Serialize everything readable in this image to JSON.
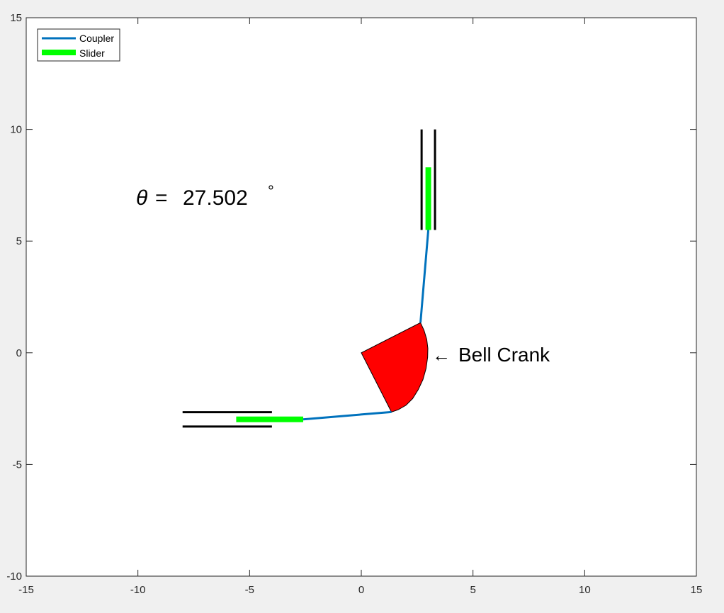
{
  "chart_data": {
    "type": "line",
    "xlim": [
      -15,
      15
    ],
    "ylim": [
      -10,
      15
    ],
    "xticks": [
      -15,
      -10,
      -5,
      0,
      5,
      10,
      15
    ],
    "yticks": [
      -10,
      -5,
      0,
      5,
      10,
      15
    ],
    "xtick_labels": [
      "-15",
      "-10",
      "-5",
      "0",
      "5",
      "10",
      "15"
    ],
    "ytick_labels": [
      "-10",
      "-5",
      "0",
      "5",
      "10",
      "15"
    ],
    "grid": false,
    "legend_position": "top-left",
    "legend": [
      {
        "label": "Coupler",
        "color": "#0072bd",
        "style": "thin-line"
      },
      {
        "label": "Slider",
        "color": "#00ff00",
        "style": "thick-line"
      }
    ],
    "series": [
      {
        "name": "Coupler",
        "color": "#0072bd",
        "segments": [
          {
            "x": [
              -2.6,
              1.35
            ],
            "y": [
              -2.98,
              -2.65
            ]
          },
          {
            "x": [
              2.65,
              3.0
            ],
            "y": [
              1.35,
              5.5
            ]
          }
        ]
      },
      {
        "name": "Slider",
        "color": "#00ff00",
        "segments": [
          {
            "x": [
              -5.6,
              -2.6
            ],
            "y": [
              -2.98,
              -2.98
            ]
          },
          {
            "x": [
              3.0,
              3.0
            ],
            "y": [
              5.5,
              8.3
            ]
          }
        ]
      }
    ],
    "guides": {
      "color": "#000000",
      "segments": [
        {
          "x": [
            -8.0,
            -4.0
          ],
          "y": [
            -2.66,
            -2.66
          ]
        },
        {
          "x": [
            -8.0,
            -4.0
          ],
          "y": [
            -3.3,
            -3.3
          ]
        },
        {
          "x": [
            2.7,
            2.7
          ],
          "y": [
            5.5,
            10.0
          ]
        },
        {
          "x": [
            3.3,
            3.3
          ],
          "y": [
            5.5,
            10.0
          ]
        }
      ]
    },
    "bell_crank": {
      "color": "#ff0000",
      "center": [
        0.0,
        0.0
      ],
      "polygon": [
        [
          0.0,
          0.0
        ],
        [
          2.65,
          1.35
        ],
        [
          2.81,
          1.0
        ],
        [
          2.93,
          0.6
        ],
        [
          2.98,
          0.2
        ],
        [
          2.97,
          -0.2
        ],
        [
          2.9,
          -0.7
        ],
        [
          2.76,
          -1.2
        ],
        [
          2.55,
          -1.65
        ],
        [
          2.3,
          -2.05
        ],
        [
          2.0,
          -2.35
        ],
        [
          1.65,
          -2.55
        ],
        [
          1.35,
          -2.65
        ]
      ]
    },
    "annotations": [
      {
        "id": "theta",
        "symbol": "θ",
        "equals": "=",
        "value": "27.502",
        "degree": "°",
        "x": -10.0,
        "y": 6.6
      },
      {
        "id": "bell_crank_label",
        "arrow": "←",
        "text": "Bell Crank",
        "x": 3.1,
        "y": -0.05
      }
    ]
  }
}
